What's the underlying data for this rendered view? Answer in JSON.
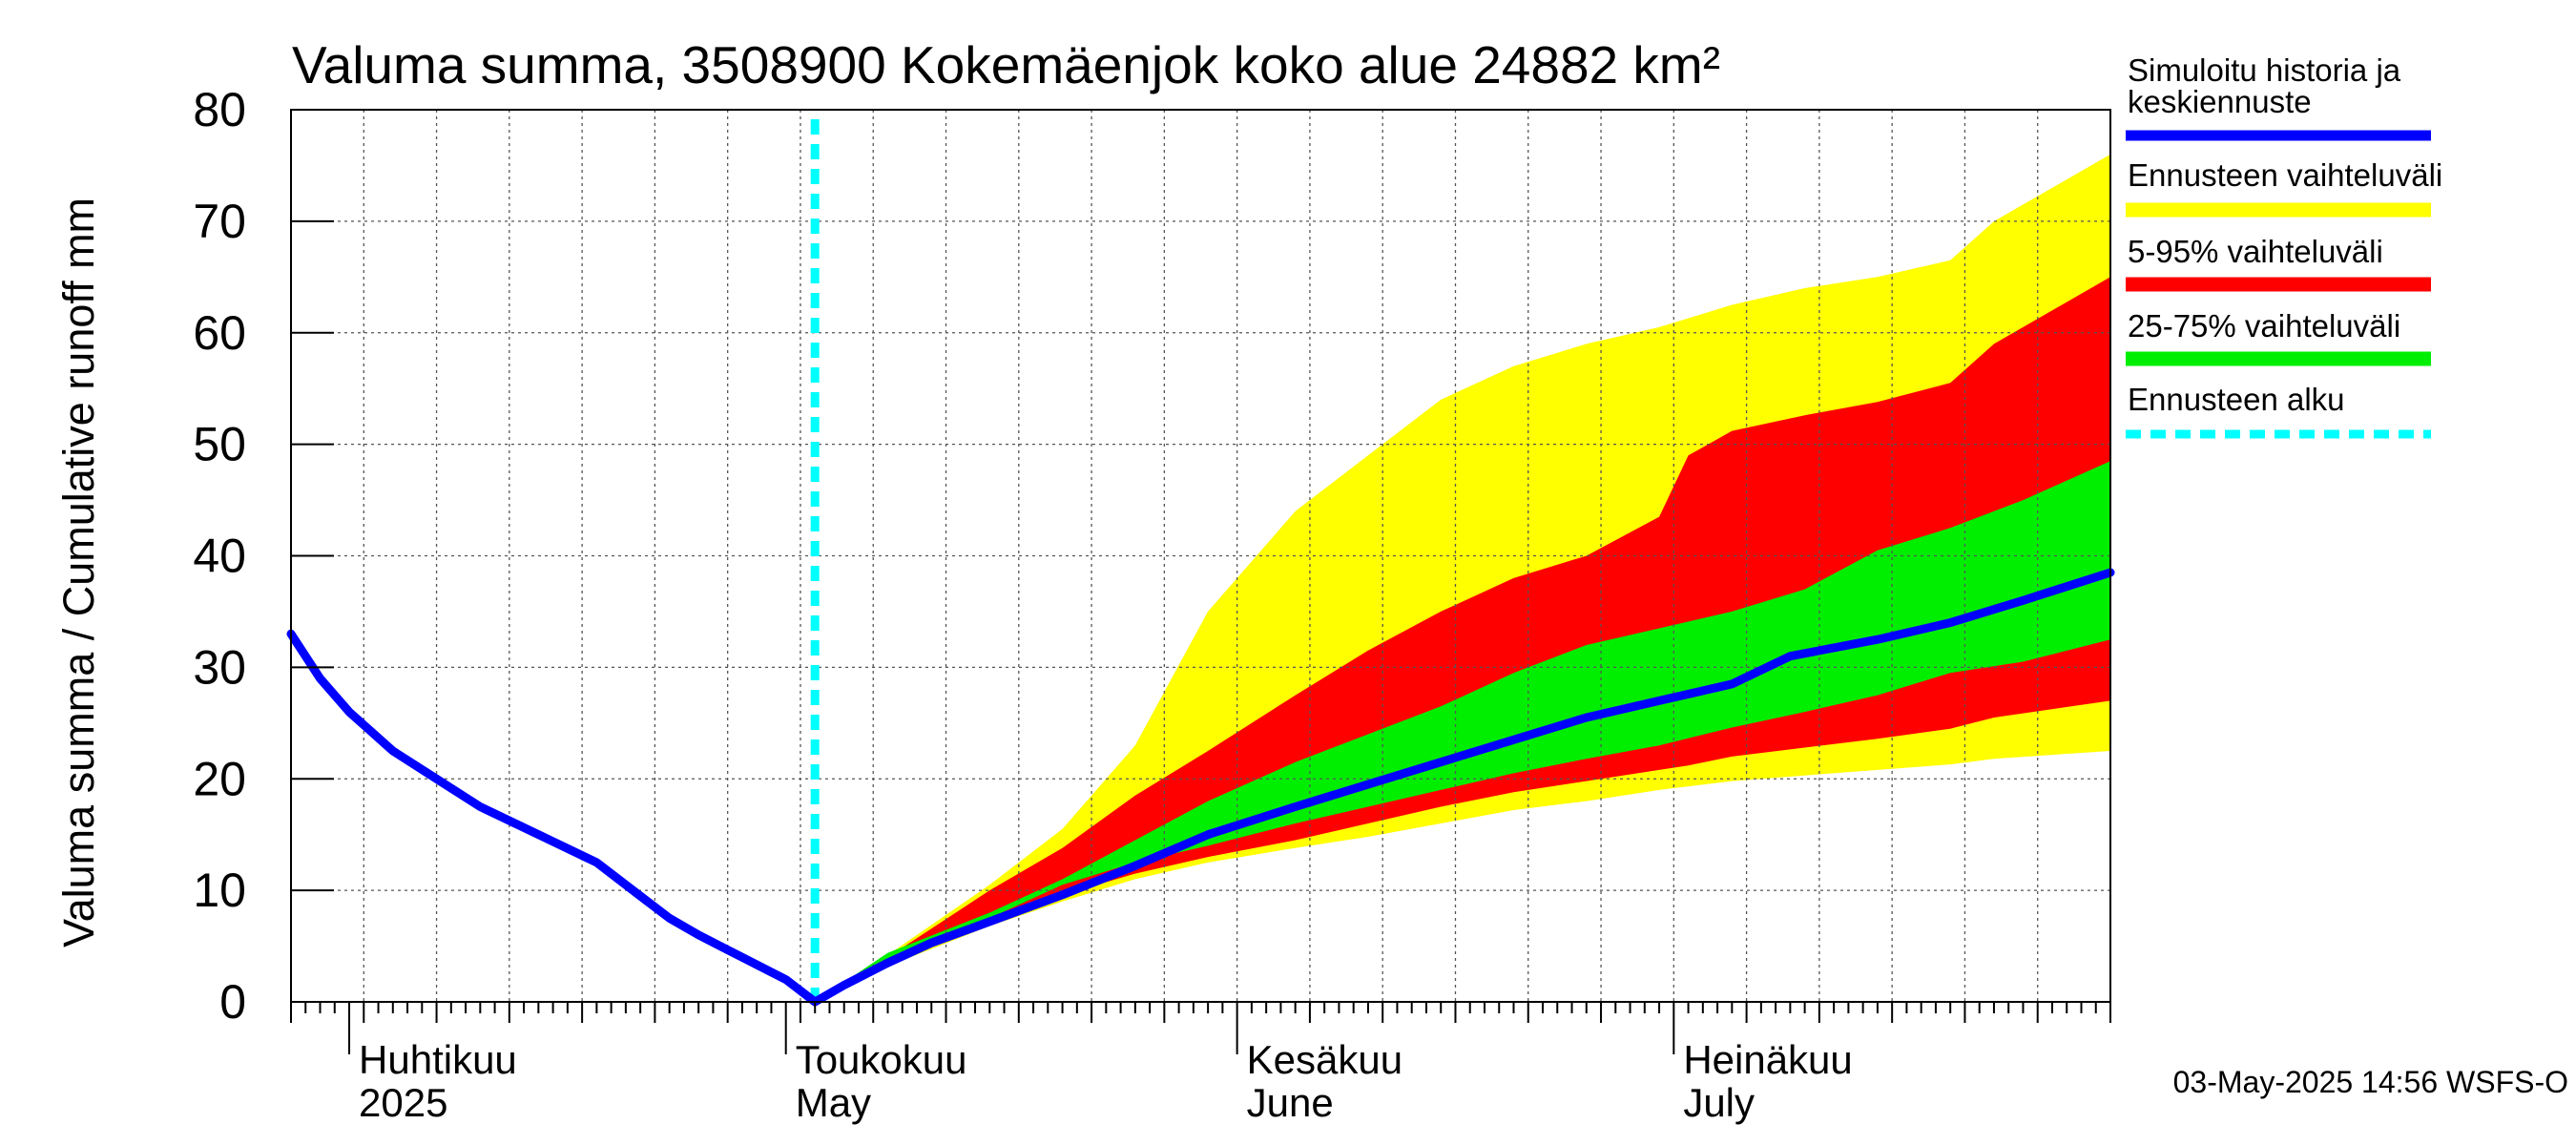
{
  "chart_data": {
    "type": "area",
    "title": "Valuma summa, 3508900 Kokemäenjok koko alue 24882 km²",
    "ylabel": "Valuma summa / Cumulative runoff    mm",
    "ylim": [
      0,
      80
    ],
    "yticks": [
      0,
      10,
      20,
      30,
      40,
      50,
      60,
      70,
      80
    ],
    "xlim": [
      "2025-03-28",
      "2025-07-31"
    ],
    "grid": true,
    "forecast_start": "2025-05-03",
    "month_labels": [
      {
        "date": "2025-04-01",
        "fi": "Huhtikuu",
        "en": "2025"
      },
      {
        "date": "2025-05-01",
        "fi": "Toukokuu",
        "en": "May"
      },
      {
        "date": "2025-06-01",
        "fi": "Kesäkuu",
        "en": "June"
      },
      {
        "date": "2025-07-01",
        "fi": "Heinäkuu",
        "en": "July"
      }
    ],
    "legend": [
      {
        "label": "Simuloitu historia ja keskiennuste",
        "label_line1": "Simuloitu historia ja",
        "label_line2": "keskiennuste",
        "color": "#0000ff",
        "style": "solid"
      },
      {
        "label": "Ennusteen vaihteluväli",
        "color": "#ffff00",
        "style": "solid"
      },
      {
        "label": "5-95% vaihteluväli",
        "color": "#ff0000",
        "style": "solid"
      },
      {
        "label": "25-75% vaihteluväli",
        "color": "#00ee00",
        "style": "solid"
      },
      {
        "label": "Ennusteen alku",
        "color": "#00ffff",
        "style": "dashed"
      }
    ],
    "footer": "03-May-2025 14:56 WSFS-O",
    "series": [
      {
        "name": "Simuloitu historia ja keskiennuste",
        "type": "line",
        "color": "#0000ff",
        "x": [
          "2025-03-28",
          "2025-03-30",
          "2025-04-01",
          "2025-04-04",
          "2025-04-07",
          "2025-04-10",
          "2025-04-14",
          "2025-04-18",
          "2025-04-21",
          "2025-04-23",
          "2025-04-25",
          "2025-04-28",
          "2025-05-01",
          "2025-05-02",
          "2025-05-03",
          "2025-05-05",
          "2025-05-08",
          "2025-05-11",
          "2025-05-15",
          "2025-05-20",
          "2025-05-25",
          "2025-05-30",
          "2025-06-05",
          "2025-06-10",
          "2025-06-15",
          "2025-06-20",
          "2025-06-25",
          "2025-06-30",
          "2025-07-05",
          "2025-07-09",
          "2025-07-15",
          "2025-07-20",
          "2025-07-25",
          "2025-07-31"
        ],
        "values": [
          33,
          29,
          26,
          22.5,
          20,
          17.5,
          15,
          12.5,
          9.5,
          7.5,
          6,
          4,
          2,
          1,
          0,
          1.5,
          3.5,
          5.3,
          7.2,
          9.6,
          12.2,
          15,
          17.5,
          19.5,
          21.5,
          23.5,
          25.5,
          27,
          28.5,
          31,
          32.5,
          34,
          36,
          38.5
        ]
      },
      {
        "name": "Ennusteen vaihteluväli",
        "type": "band",
        "color": "#ffff00",
        "x": [
          "2025-05-03",
          "2025-05-08",
          "2025-05-15",
          "2025-05-20",
          "2025-05-25",
          "2025-05-30",
          "2025-06-05",
          "2025-06-10",
          "2025-06-15",
          "2025-06-20",
          "2025-06-25",
          "2025-06-30",
          "2025-07-05",
          "2025-07-10",
          "2025-07-15",
          "2025-07-20",
          "2025-07-23",
          "2025-07-31"
        ],
        "low": [
          0,
          3.2,
          6.8,
          9,
          11,
          12.5,
          13.8,
          14.8,
          16,
          17.2,
          18,
          19,
          19.8,
          20.3,
          20.8,
          21.3,
          21.8,
          22.5
        ],
        "high": [
          0,
          4.2,
          10.5,
          15.5,
          23,
          35,
          44,
          49,
          54,
          57,
          59,
          60.5,
          62.5,
          64,
          65,
          66.5,
          70,
          76
        ]
      },
      {
        "name": "5-95% vaihteluväli",
        "type": "band",
        "color": "#ff0000",
        "x": [
          "2025-05-03",
          "2025-05-08",
          "2025-05-15",
          "2025-05-20",
          "2025-05-25",
          "2025-05-30",
          "2025-06-05",
          "2025-06-10",
          "2025-06-15",
          "2025-06-20",
          "2025-06-25",
          "2025-06-30",
          "2025-07-02",
          "2025-07-05",
          "2025-07-10",
          "2025-07-15",
          "2025-07-20",
          "2025-07-23",
          "2025-07-31"
        ],
        "low": [
          0,
          3.5,
          7.2,
          9.6,
          11.5,
          13,
          14.5,
          16,
          17.5,
          18.8,
          19.8,
          20.8,
          21.2,
          22,
          22.8,
          23.6,
          24.5,
          25.5,
          27
        ],
        "high": [
          0,
          4,
          10,
          13.8,
          18.5,
          22.5,
          27.5,
          31.5,
          35,
          38,
          40,
          43.5,
          49,
          51.2,
          52.6,
          53.8,
          55.5,
          59,
          65
        ]
      },
      {
        "name": "25-75% vaihteluväli",
        "type": "band",
        "color": "#00ee00",
        "x": [
          "2025-05-03",
          "2025-05-08",
          "2025-05-15",
          "2025-05-20",
          "2025-05-25",
          "2025-05-30",
          "2025-06-05",
          "2025-06-10",
          "2025-06-15",
          "2025-06-20",
          "2025-06-25",
          "2025-06-30",
          "2025-07-05",
          "2025-07-10",
          "2025-07-15",
          "2025-07-20",
          "2025-07-25",
          "2025-07-31"
        ],
        "low": [
          0,
          3.8,
          7.5,
          10.5,
          12.5,
          14,
          16,
          17.5,
          19,
          20.5,
          21.8,
          23,
          24.6,
          26,
          27.5,
          29.5,
          30.5,
          32.5
        ],
        "high": [
          0,
          4.4,
          8,
          11,
          14.5,
          18,
          21.5,
          24,
          26.5,
          29.5,
          32,
          33.5,
          35,
          37,
          40.5,
          42.5,
          45,
          48.5
        ]
      }
    ]
  }
}
